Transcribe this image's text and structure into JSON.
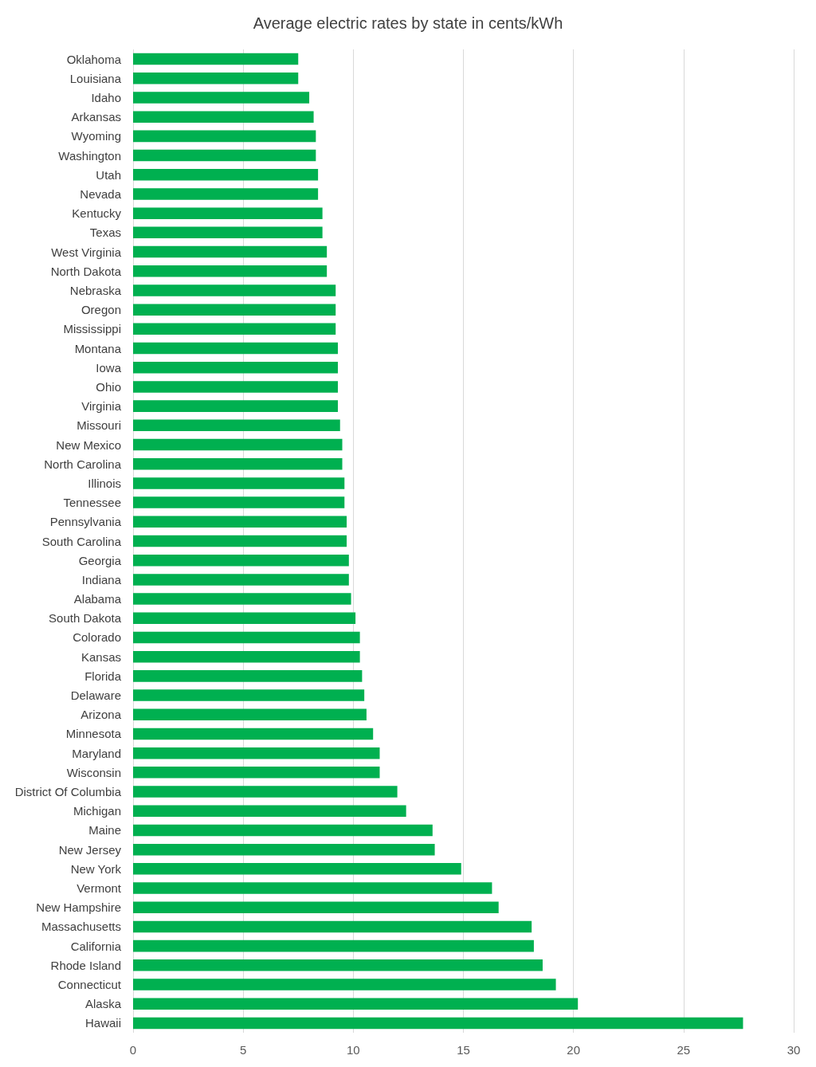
{
  "chart_data": {
    "type": "bar",
    "orientation": "horizontal",
    "title": "Average electric rates by state in cents/kWh",
    "categories": [
      "Oklahoma",
      "Louisiana",
      "Idaho",
      "Arkansas",
      "Wyoming",
      "Washington",
      "Utah",
      "Nevada",
      "Kentucky",
      "Texas",
      "West Virginia",
      "North Dakota",
      "Nebraska",
      "Oregon",
      "Mississippi",
      "Montana",
      "Iowa",
      "Ohio",
      "Virginia",
      "Missouri",
      "New Mexico",
      "North Carolina",
      "Illinois",
      "Tennessee",
      "Pennsylvania",
      "South Carolina",
      "Georgia",
      "Indiana",
      "Alabama",
      "South Dakota",
      "Colorado",
      "Kansas",
      "Florida",
      "Delaware",
      "Arizona",
      "Minnesota",
      "Maryland",
      "Wisconsin",
      "District Of Columbia",
      "Michigan",
      "Maine",
      "New Jersey",
      "New York",
      "Vermont",
      "New Hampshire",
      "Massachusetts",
      "California",
      "Rhode Island",
      "Connecticut",
      "Alaska",
      "Hawaii"
    ],
    "values": [
      7.5,
      7.5,
      8.0,
      8.2,
      8.3,
      8.3,
      8.4,
      8.4,
      8.6,
      8.6,
      8.8,
      8.8,
      9.2,
      9.2,
      9.2,
      9.3,
      9.3,
      9.3,
      9.3,
      9.4,
      9.5,
      9.5,
      9.6,
      9.6,
      9.7,
      9.7,
      9.8,
      9.8,
      9.9,
      10.1,
      10.3,
      10.3,
      10.4,
      10.5,
      10.6,
      10.9,
      11.2,
      11.2,
      12.0,
      12.4,
      13.6,
      13.7,
      14.9,
      16.3,
      16.6,
      18.1,
      18.2,
      18.6,
      19.2,
      20.2,
      27.7
    ],
    "color": "#00b050",
    "xlim": [
      0,
      30
    ],
    "xticks": [
      0,
      5,
      10,
      15,
      20,
      25,
      30
    ],
    "grid": "x"
  }
}
